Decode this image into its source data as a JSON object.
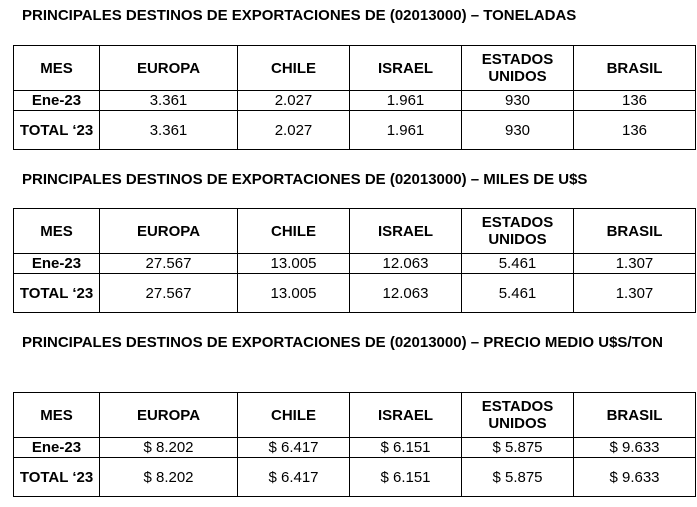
{
  "header_cells": [
    "MES",
    "EUROPA",
    "CHILE",
    "ISRAEL",
    "ESTADOS UNIDOS",
    "BRASIL"
  ],
  "row_labels": [
    "Ene-23",
    "TOTAL ‘23"
  ],
  "tables": [
    {
      "title": "PRINCIPALES DESTINOS DE EXPORTACIONES DE (02013000) – TONELADAS",
      "rows": [
        [
          "3.361",
          "2.027",
          "1.961",
          "930",
          "136"
        ],
        [
          "3.361",
          "2.027",
          "1.961",
          "930",
          "136"
        ]
      ]
    },
    {
      "title": "PRINCIPALES DESTINOS DE EXPORTACIONES DE (02013000) – MILES DE U$S",
      "rows": [
        [
          "27.567",
          "13.005",
          "12.063",
          "5.461",
          "1.307"
        ],
        [
          "27.567",
          "13.005",
          "12.063",
          "5.461",
          "1.307"
        ]
      ]
    },
    {
      "title": "PRINCIPALES DESTINOS DE EXPORTACIONES DE (02013000) – PRECIO MEDIO U$S/TON",
      "rows": [
        [
          "$ 8.202",
          "$ 6.417",
          "$ 6.151",
          "$ 5.875",
          "$ 9.633"
        ],
        [
          "$ 8.202",
          "$ 6.417",
          "$ 6.151",
          "$ 5.875",
          "$ 9.633"
        ]
      ]
    }
  ]
}
